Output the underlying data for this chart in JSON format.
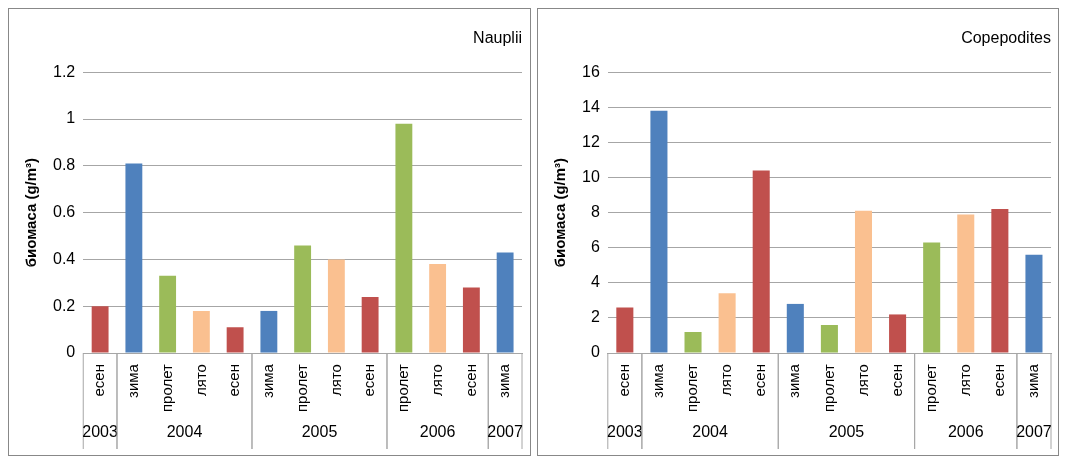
{
  "chart_data": [
    {
      "type": "bar",
      "title": "Nauplii",
      "ylabel": "биомаса (g/m³)",
      "categories": [
        "есен",
        "зима",
        "пролет",
        "лято",
        "есен",
        "зима",
        "пролет",
        "лято",
        "есен",
        "пролет",
        "лято",
        "есен",
        "зима"
      ],
      "values": [
        0.2,
        0.81,
        0.33,
        0.18,
        0.11,
        0.18,
        0.46,
        0.4,
        0.24,
        0.98,
        0.38,
        0.28,
        0.43
      ],
      "colors": [
        "#c0504d",
        "#4f81bd",
        "#9bbb59",
        "#fac090",
        "#c0504d",
        "#4f81bd",
        "#9bbb59",
        "#fac090",
        "#c0504d",
        "#9bbb59",
        "#fac090",
        "#c0504d",
        "#4f81bd"
      ],
      "ylim": [
        0,
        1.2
      ],
      "yticks": [
        0,
        0.2,
        0.4,
        0.6,
        0.8,
        1,
        1.2
      ],
      "grid": "y",
      "legend": false,
      "annotations": [
        "2003",
        "2004",
        "2005",
        "2006",
        "2007"
      ]
    },
    {
      "type": "bar",
      "title": "Copepodites",
      "ylabel": "биомаса (g/m³)",
      "categories": [
        "есен",
        "зима",
        "пролет",
        "лято",
        "есен",
        "зима",
        "пролет",
        "лято",
        "есен",
        "пролет",
        "лято",
        "есен",
        "зима"
      ],
      "values": [
        2.6,
        13.8,
        1.2,
        3.4,
        10.4,
        2.8,
        1.6,
        8.1,
        2.2,
        6.3,
        7.9,
        8.2,
        5.6
      ],
      "colors": [
        "#c0504d",
        "#4f81bd",
        "#9bbb59",
        "#fac090",
        "#c0504d",
        "#4f81bd",
        "#9bbb59",
        "#fac090",
        "#c0504d",
        "#9bbb59",
        "#fac090",
        "#c0504d",
        "#4f81bd"
      ],
      "ylim": [
        0,
        16
      ],
      "yticks": [
        0,
        2,
        4,
        6,
        8,
        10,
        12,
        14,
        16
      ],
      "grid": "y",
      "legend": false,
      "annotations": [
        "2003",
        "2004",
        "2005",
        "2006",
        "2007"
      ]
    }
  ]
}
